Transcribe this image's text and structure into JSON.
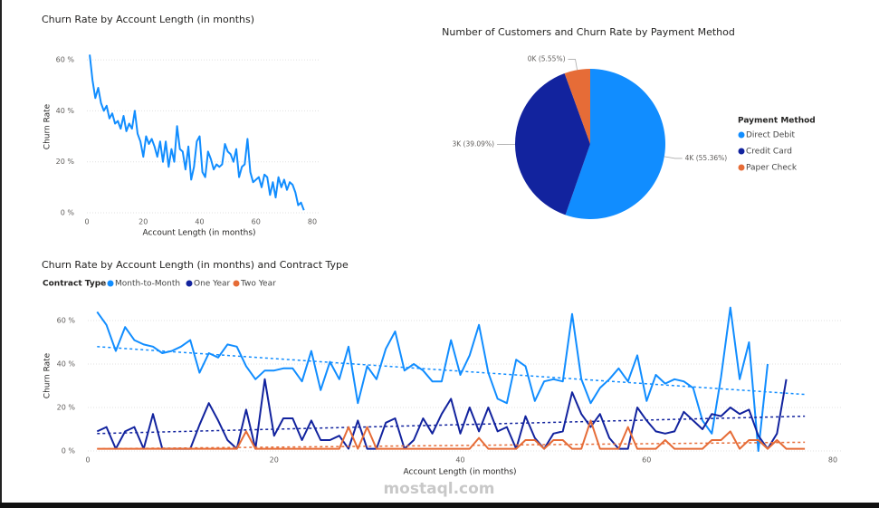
{
  "chart_data": [
    {
      "type": "line",
      "title": "Churn Rate by Account Length (in months)",
      "x_label": "Account Length (in months)",
      "y_label": "Churn Rate",
      "color": "#118dff",
      "xlim": [
        0,
        80
      ],
      "xticks": [
        0,
        20,
        40,
        60,
        80
      ],
      "ylim": [
        0,
        65
      ],
      "yticks": [
        {
          "value": 0,
          "label": "0 %"
        },
        {
          "value": 20,
          "label": "20 %"
        },
        {
          "value": 40,
          "label": "40 %"
        },
        {
          "value": 60,
          "label": "60 %"
        }
      ],
      "grid": true,
      "x": [
        1,
        2,
        3,
        4,
        5,
        6,
        7,
        8,
        9,
        10,
        11,
        12,
        13,
        14,
        15,
        16,
        17,
        18,
        19,
        20,
        21,
        22,
        23,
        24,
        25,
        26,
        27,
        28,
        29,
        30,
        31,
        32,
        33,
        34,
        35,
        36,
        37,
        38,
        39,
        40,
        41,
        42,
        43,
        44,
        45,
        46,
        47,
        48,
        49,
        50,
        51,
        52,
        53,
        54,
        55,
        56,
        57,
        58,
        59,
        60,
        61,
        62,
        63,
        64,
        65,
        66,
        67,
        68,
        69,
        70,
        71,
        72,
        73,
        74,
        75,
        76,
        77
      ],
      "values": [
        62,
        52,
        45,
        49,
        43,
        40,
        42,
        37,
        39,
        35,
        36,
        33,
        38,
        32,
        35,
        33,
        40,
        31,
        28,
        22,
        30,
        27,
        29,
        26,
        22,
        28,
        20,
        28,
        18,
        25,
        20,
        34,
        25,
        24,
        17,
        26,
        13,
        18,
        28,
        30,
        16,
        14,
        24,
        21,
        17,
        19,
        18,
        19,
        27,
        24,
        23,
        20,
        25,
        14,
        18,
        19,
        29,
        16,
        12,
        13,
        14,
        10,
        15,
        14,
        7,
        12,
        6,
        14,
        10,
        13,
        9,
        12,
        11,
        8,
        3,
        4,
        1
      ]
    },
    {
      "type": "pie",
      "title": "Number of Customers and Churn Rate by Payment Method",
      "legend_title": "Payment Method",
      "categories": [
        "Direct Debit",
        "Credit Card",
        "Paper Check"
      ],
      "values": [
        55.36,
        39.09,
        5.55
      ],
      "value_labels": [
        "4K (55.36%)",
        "3K (39.09%)",
        "0K (5.55%)"
      ],
      "colors": [
        "#118dff",
        "#12239e",
        "#e66c37"
      ]
    },
    {
      "type": "line",
      "title": "Churn Rate by Account Length (in months) and Contract Type",
      "x_label": "Account Length (in months)",
      "y_label": "Churn Rate",
      "legend_title": "Contract Type",
      "xlim": [
        0,
        80
      ],
      "xticks": [
        0,
        20,
        40,
        60,
        80
      ],
      "ylim": [
        0,
        70
      ],
      "yticks": [
        {
          "value": 0,
          "label": "0 %"
        },
        {
          "value": 20,
          "label": "20 %"
        },
        {
          "value": 40,
          "label": "40 %"
        },
        {
          "value": 60,
          "label": "60 %"
        }
      ],
      "grid": true,
      "trend_x": [
        1,
        77
      ],
      "x": [
        1,
        2,
        3,
        4,
        5,
        6,
        7,
        8,
        9,
        10,
        11,
        12,
        13,
        14,
        15,
        16,
        17,
        18,
        19,
        20,
        21,
        22,
        23,
        24,
        25,
        26,
        27,
        28,
        29,
        30,
        31,
        32,
        33,
        34,
        35,
        36,
        37,
        38,
        39,
        40,
        41,
        42,
        43,
        44,
        45,
        46,
        47,
        48,
        49,
        50,
        51,
        52,
        53,
        54,
        55,
        56,
        57,
        58,
        59,
        60,
        61,
        62,
        63,
        64,
        65,
        66,
        67,
        68,
        69,
        70,
        71,
        72,
        73,
        74,
        75,
        76,
        77
      ],
      "series": [
        {
          "name": "Month-to-Month",
          "color": "#118dff",
          "trend": [
            48,
            26
          ],
          "values": [
            64,
            58,
            46,
            57,
            51,
            49,
            48,
            45,
            46,
            48,
            51,
            36,
            45,
            43,
            49,
            48,
            39,
            33,
            37,
            37,
            38,
            38,
            32,
            46,
            28,
            41,
            33,
            48,
            22,
            39,
            33,
            47,
            55,
            37,
            40,
            37,
            32,
            32,
            51,
            35,
            44,
            58,
            36,
            24,
            22,
            42,
            39,
            23,
            32,
            33,
            32,
            63,
            33,
            22,
            29,
            33,
            38,
            32,
            44,
            23,
            35,
            31,
            33,
            32,
            29,
            14,
            8,
            34,
            66,
            33,
            50,
            0,
            40,
            null,
            null,
            null,
            null
          ]
        },
        {
          "name": "One Year",
          "color": "#12239e",
          "trend": [
            8,
            16
          ],
          "values": [
            9,
            11,
            1,
            9,
            11,
            1,
            17,
            1,
            1,
            1,
            1,
            12,
            22,
            14,
            5,
            1,
            19,
            1,
            33,
            7,
            15,
            15,
            5,
            14,
            5,
            5,
            7,
            1,
            14,
            1,
            1,
            13,
            15,
            1,
            5,
            15,
            8,
            17,
            24,
            8,
            20,
            9,
            20,
            9,
            11,
            1,
            16,
            6,
            1,
            8,
            9,
            27,
            17,
            11,
            17,
            6,
            1,
            1,
            20,
            14,
            9,
            8,
            9,
            18,
            14,
            10,
            17,
            16,
            20,
            17,
            19,
            7,
            1,
            8,
            33,
            null,
            null
          ]
        },
        {
          "name": "Two Year",
          "color": "#e66c37",
          "trend": [
            1,
            4
          ],
          "values": [
            1,
            1,
            1,
            1,
            1,
            1,
            1,
            1,
            1,
            1,
            1,
            1,
            1,
            1,
            1,
            1,
            9,
            1,
            1,
            1,
            1,
            1,
            1,
            1,
            1,
            1,
            1,
            11,
            1,
            11,
            1,
            1,
            1,
            1,
            1,
            1,
            1,
            1,
            1,
            1,
            1,
            6,
            1,
            1,
            1,
            1,
            5,
            5,
            1,
            5,
            5,
            1,
            1,
            14,
            1,
            1,
            1,
            11,
            1,
            1,
            1,
            5,
            1,
            1,
            1,
            1,
            5,
            5,
            9,
            1,
            5,
            5,
            1,
            5,
            1,
            1,
            1
          ]
        }
      ]
    }
  ],
  "watermark": "mostaql.com"
}
